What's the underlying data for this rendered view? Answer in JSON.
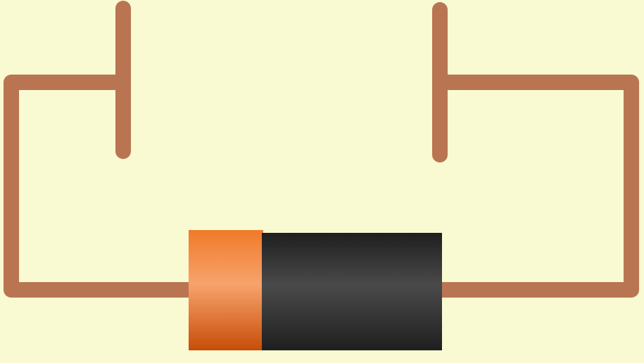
{
  "diagram": {
    "title": "",
    "components": [
      "battery",
      "wire",
      "left-electrode",
      "right-electrode"
    ]
  },
  "colors": {
    "background": "#f9f9d2",
    "wire": "#b97552",
    "battery_positive_light": "#f7a36c",
    "battery_positive_mid": "#f07a2a",
    "battery_positive_dark": "#c74d08",
    "battery_body_light": "#4a4a4a",
    "battery_body_dark": "#1f1f1f"
  }
}
